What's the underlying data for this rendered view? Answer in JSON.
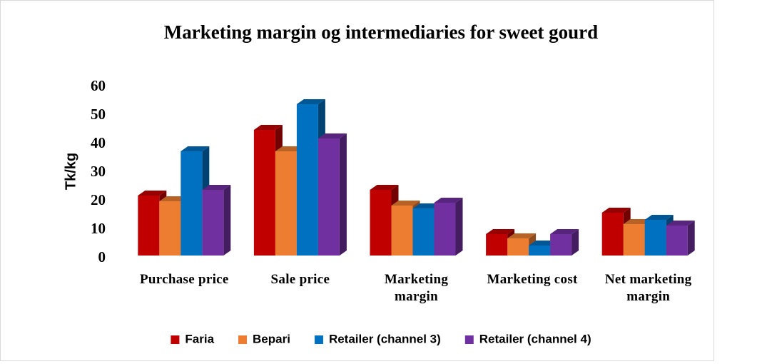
{
  "chart_data": {
    "type": "bar3d",
    "title": "Marketing margin og intermediaries for sweet gourd",
    "y_label": "Tk/kg",
    "categories": [
      "Purchase price",
      "Sale price",
      "Marketing margin",
      "Marketing cost",
      "Net marketing margin"
    ],
    "series": [
      {
        "name": "Faria",
        "color": "#c00000",
        "values": [
          22,
          45,
          24,
          8.5,
          16
        ]
      },
      {
        "name": "Bepari",
        "color": "#ed7d31",
        "values": [
          20,
          37.5,
          18.5,
          7,
          12
        ]
      },
      {
        "name": "Retailer (channel 3)",
        "color": "#0070c0",
        "values": [
          37.5,
          54,
          17.5,
          4.5,
          13.5
        ]
      },
      {
        "name": "Retailer (channel 4)",
        "color": "#7030a0",
        "values": [
          24,
          42,
          19.5,
          8.5,
          11.5
        ]
      }
    ],
    "ylim": [
      0,
      60
    ],
    "yticks": [
      0,
      10,
      20,
      30,
      40,
      50,
      60
    ],
    "grid": false,
    "legend": "bottom"
  }
}
